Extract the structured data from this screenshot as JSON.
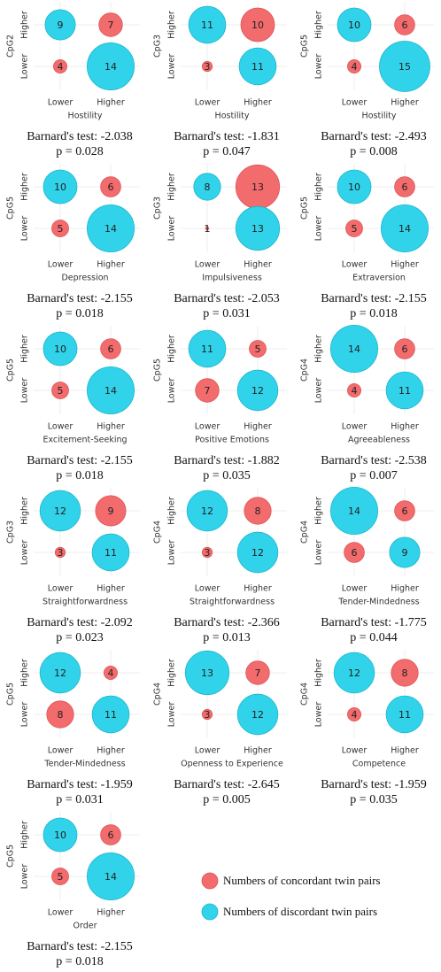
{
  "legend": [
    {
      "name": "Numbers of concordant twin pairs",
      "color": "#f26b6d"
    },
    {
      "name": "Numbers of discordant twin pairs",
      "color": "#31d3ea"
    }
  ],
  "chart_data": [
    {
      "type": "bubble",
      "y_label": "CpG2",
      "x_label": "Hostility",
      "rows": [
        "Higher",
        "Lower"
      ],
      "columns": [
        "Lower",
        "Higher"
      ],
      "values": [
        [
          9,
          7
        ],
        [
          4,
          14
        ]
      ],
      "annotations": [
        "Barnard's test: -2.038",
        "p = 0.028"
      ]
    },
    {
      "type": "bubble",
      "y_label": "CpG3",
      "x_label": "Hostility",
      "rows": [
        "Higher",
        "Lower"
      ],
      "columns": [
        "Lower",
        "Higher"
      ],
      "values": [
        [
          11,
          10
        ],
        [
          3,
          11
        ]
      ],
      "annotations": [
        "Barnard's test: -1.831",
        "p = 0.047"
      ]
    },
    {
      "type": "bubble",
      "y_label": "CpG5",
      "x_label": "Hostility",
      "rows": [
        "Higher",
        "Lower"
      ],
      "columns": [
        "Lower",
        "Higher"
      ],
      "values": [
        [
          10,
          6
        ],
        [
          4,
          15
        ]
      ],
      "annotations": [
        "Barnard's test: -2.493",
        "p = 0.008"
      ]
    },
    {
      "type": "bubble",
      "y_label": "CpG5",
      "x_label": "Depression",
      "rows": [
        "Higher",
        "Lower"
      ],
      "columns": [
        "Lower",
        "Higher"
      ],
      "values": [
        [
          10,
          6
        ],
        [
          5,
          14
        ]
      ],
      "annotations": [
        "Barnard's test: -2.155",
        "p = 0.018"
      ]
    },
    {
      "type": "bubble",
      "y_label": "CpG3",
      "x_label": "Impulsiveness",
      "rows": [
        "Higher",
        "Lower"
      ],
      "columns": [
        "Lower",
        "Higher"
      ],
      "values": [
        [
          8,
          13
        ],
        [
          1,
          13
        ]
      ],
      "annotations": [
        "Barnard's test: -2.053",
        "p = 0.031"
      ]
    },
    {
      "type": "bubble",
      "y_label": "CpG5",
      "x_label": "Extraversion",
      "rows": [
        "Higher",
        "Lower"
      ],
      "columns": [
        "Lower",
        "Higher"
      ],
      "values": [
        [
          10,
          6
        ],
        [
          5,
          14
        ]
      ],
      "annotations": [
        "Barnard's test: -2.155",
        "p = 0.018"
      ]
    },
    {
      "type": "bubble",
      "y_label": "CpG5",
      "x_label": "Excitement-Seeking",
      "rows": [
        "Higher",
        "Lower"
      ],
      "columns": [
        "Lower",
        "Higher"
      ],
      "values": [
        [
          10,
          6
        ],
        [
          5,
          14
        ]
      ],
      "annotations": [
        "Barnard's test: -2.155",
        "p = 0.018"
      ]
    },
    {
      "type": "bubble",
      "y_label": "CpG5",
      "x_label": "Positive Emotions",
      "rows": [
        "Higher",
        "Lower"
      ],
      "columns": [
        "Lower",
        "Higher"
      ],
      "values": [
        [
          11,
          5
        ],
        [
          7,
          12
        ]
      ],
      "annotations": [
        "Barnard's test: -1.882",
        "p = 0.035"
      ]
    },
    {
      "type": "bubble",
      "y_label": "CpG4",
      "x_label": "Agreeableness",
      "rows": [
        "Higher",
        "Lower"
      ],
      "columns": [
        "Lower",
        "Higher"
      ],
      "values": [
        [
          14,
          6
        ],
        [
          4,
          11
        ]
      ],
      "annotations": [
        "Barnard's test: -2.538",
        "p = 0.007"
      ]
    },
    {
      "type": "bubble",
      "y_label": "CpG3",
      "x_label": "Straightforwardness",
      "rows": [
        "Higher",
        "Lower"
      ],
      "columns": [
        "Lower",
        "Higher"
      ],
      "values": [
        [
          12,
          9
        ],
        [
          3,
          11
        ]
      ],
      "annotations": [
        "Barnard's test: -2.092",
        "p = 0.023"
      ]
    },
    {
      "type": "bubble",
      "y_label": "CpG4",
      "x_label": "Straightforwardness",
      "rows": [
        "Higher",
        "Lower"
      ],
      "columns": [
        "Lower",
        "Higher"
      ],
      "values": [
        [
          12,
          8
        ],
        [
          3,
          12
        ]
      ],
      "annotations": [
        "Barnard's test: -2.366",
        "p = 0.013"
      ]
    },
    {
      "type": "bubble",
      "y_label": "CpG4",
      "x_label": "Tender-Mindedness",
      "rows": [
        "Higher",
        "Lower"
      ],
      "columns": [
        "Lower",
        "Higher"
      ],
      "values": [
        [
          14,
          6
        ],
        [
          6,
          9
        ]
      ],
      "annotations": [
        "Barnard's test: -1.775",
        "p = 0.044"
      ]
    },
    {
      "type": "bubble",
      "y_label": "CpG5",
      "x_label": "Tender-Mindedness",
      "rows": [
        "Higher",
        "Lower"
      ],
      "columns": [
        "Lower",
        "Higher"
      ],
      "values": [
        [
          12,
          4
        ],
        [
          8,
          11
        ]
      ],
      "annotations": [
        "Barnard's test: -1.959",
        "p = 0.031"
      ]
    },
    {
      "type": "bubble",
      "y_label": "CpG4",
      "x_label": "Openness to Experience",
      "rows": [
        "Higher",
        "Lower"
      ],
      "columns": [
        "Lower",
        "Higher"
      ],
      "values": [
        [
          13,
          7
        ],
        [
          3,
          12
        ]
      ],
      "annotations": [
        "Barnard's test: -2.645",
        "p = 0.005"
      ]
    },
    {
      "type": "bubble",
      "y_label": "CpG4",
      "x_label": "Competence",
      "rows": [
        "Higher",
        "Lower"
      ],
      "columns": [
        "Lower",
        "Higher"
      ],
      "values": [
        [
          12,
          8
        ],
        [
          4,
          11
        ]
      ],
      "annotations": [
        "Barnard's test: -1.959",
        "p = 0.035"
      ]
    },
    {
      "type": "bubble",
      "y_label": "CpG5",
      "x_label": "Order",
      "rows": [
        "Higher",
        "Lower"
      ],
      "columns": [
        "Lower",
        "Higher"
      ],
      "values": [
        [
          10,
          6
        ],
        [
          5,
          14
        ]
      ],
      "annotations": [
        "Barnard's test: -2.155",
        "p = 0.018"
      ]
    }
  ]
}
